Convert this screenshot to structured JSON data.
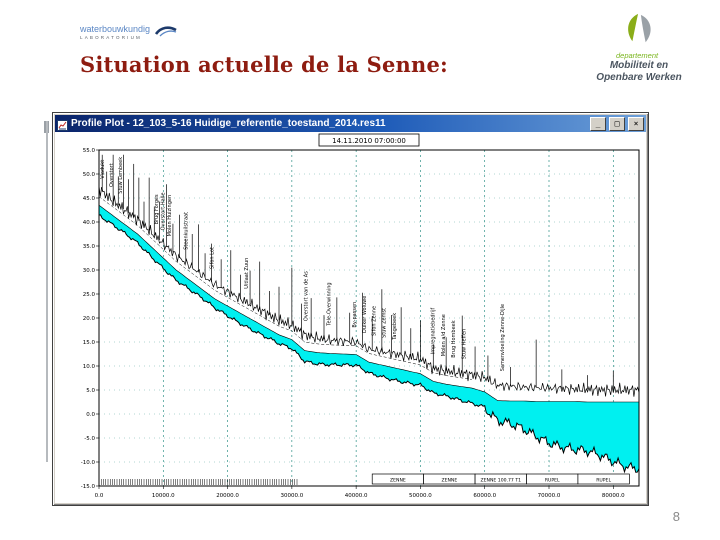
{
  "slide": {
    "title": "Situation actuelle de la Senne:",
    "page_number": "8"
  },
  "logos": {
    "top_left": {
      "line1": "waterbouwkundig",
      "line2": "LABORATORIUM"
    },
    "top_right": {
      "line1": "departement",
      "line2": "Mobiliteit en",
      "line3": "Openbare Werken"
    }
  },
  "window": {
    "title": "Profile Plot - 12_103_5-16 Huidige_referentie_toestand_2014.res11",
    "buttons": {
      "minimize": "_",
      "maximize": "□",
      "close": "×"
    }
  },
  "chart_data": {
    "type": "area",
    "title": "14.11.2010 07:00:00",
    "xlabel": "",
    "ylabel": "",
    "xlim": [
      0,
      84000
    ],
    "ylim": [
      -15,
      55
    ],
    "x_ticks": [
      0,
      10000,
      20000,
      30000,
      40000,
      50000,
      60000,
      70000,
      80000
    ],
    "y_ticks": [
      55,
      50,
      45,
      40,
      35,
      30,
      25,
      20,
      15,
      10,
      5,
      0,
      -5,
      -10,
      -15
    ],
    "grid": "dashed",
    "legend": "none",
    "colors": {
      "water": "#00f0f0",
      "grid": "#0e8074",
      "axis": "#000000"
    },
    "x": [
      0,
      2000,
      4000,
      6000,
      8000,
      10000,
      12000,
      14000,
      16000,
      18000,
      20000,
      22000,
      24000,
      26000,
      28000,
      30000,
      32000,
      34000,
      36000,
      38000,
      40000,
      42000,
      44000,
      46000,
      48000,
      50000,
      52000,
      54000,
      56000,
      58000,
      60000,
      62000,
      64000,
      66000,
      68000,
      70000,
      72000,
      74000,
      76000,
      78000,
      80000,
      82000,
      84000
    ],
    "series": [
      {
        "name": "water_surface",
        "y": [
          43.5,
          41.5,
          39.5,
          37.5,
          35,
          32.5,
          30,
          28,
          26,
          24,
          22.5,
          21,
          19.5,
          18,
          16.5,
          15.5,
          13.2,
          12.8,
          12.6,
          12.5,
          12.4,
          10.8,
          10.2,
          9.6,
          9,
          8.4,
          6.8,
          6.2,
          5.8,
          5.4,
          4.6,
          2.8,
          2.7,
          2.7,
          2.6,
          2.6,
          2.6,
          2.6,
          2.5,
          2.5,
          2.5,
          2.5,
          2.5
        ]
      },
      {
        "name": "river_bed",
        "y": [
          41.5,
          39.5,
          37.5,
          35.5,
          33,
          30.5,
          28,
          26,
          24,
          22,
          20.5,
          19,
          17.5,
          16,
          14.5,
          13.5,
          11,
          10.6,
          10.4,
          10.2,
          10,
          8.4,
          7.8,
          7.2,
          6.6,
          6,
          4.2,
          3.6,
          3,
          2.4,
          1.6,
          -1.5,
          -2.5,
          -3.5,
          -4.5,
          -5.5,
          -6.5,
          -7.5,
          -8.2,
          -9,
          -9.8,
          -10.5,
          -11
        ]
      },
      {
        "name": "embankment_crest",
        "y": [
          47,
          44.5,
          42.5,
          40.5,
          38,
          35.5,
          33,
          31,
          29,
          27,
          25.5,
          24,
          22.5,
          21,
          19.5,
          18.5,
          16.5,
          15.8,
          15.4,
          15.2,
          15,
          13.5,
          13,
          12.5,
          12,
          11.5,
          9.5,
          9,
          8.6,
          8.2,
          7.6,
          6,
          5.8,
          5.6,
          5.5,
          5.4,
          5.3,
          5.2,
          5.1,
          5,
          5,
          5,
          5
        ]
      }
    ],
    "structures": [
      {
        "x": 500,
        "h": 8
      },
      {
        "x": 1200,
        "h": 5
      },
      {
        "x": 2200,
        "h": 10
      },
      {
        "x": 3000,
        "h": 6
      },
      {
        "x": 3800,
        "h": 12
      },
      {
        "x": 4600,
        "h": 7
      },
      {
        "x": 5400,
        "h": 11
      },
      {
        "x": 6200,
        "h": 9
      },
      {
        "x": 7000,
        "h": 5
      },
      {
        "x": 7800,
        "h": 11
      },
      {
        "x": 8600,
        "h": 6
      },
      {
        "x": 9400,
        "h": 8
      },
      {
        "x": 10500,
        "h": 13
      },
      {
        "x": 11500,
        "h": 6
      },
      {
        "x": 12500,
        "h": 9
      },
      {
        "x": 13500,
        "h": 5
      },
      {
        "x": 14500,
        "h": 7
      },
      {
        "x": 15500,
        "h": 10
      },
      {
        "x": 16500,
        "h": 5
      },
      {
        "x": 17500,
        "h": 8
      },
      {
        "x": 19000,
        "h": 6
      },
      {
        "x": 20500,
        "h": 9
      },
      {
        "x": 22000,
        "h": 5
      },
      {
        "x": 23500,
        "h": 7
      },
      {
        "x": 25000,
        "h": 10
      },
      {
        "x": 26500,
        "h": 5
      },
      {
        "x": 28000,
        "h": 7
      },
      {
        "x": 30000,
        "h": 12
      },
      {
        "x": 31500,
        "h": 6
      },
      {
        "x": 33000,
        "h": 8
      },
      {
        "x": 35000,
        "h": 5
      },
      {
        "x": 37000,
        "h": 9
      },
      {
        "x": 39000,
        "h": 6
      },
      {
        "x": 41000,
        "h": 11
      },
      {
        "x": 42500,
        "h": 7
      },
      {
        "x": 44000,
        "h": 13
      },
      {
        "x": 45500,
        "h": 8
      },
      {
        "x": 47000,
        "h": 10
      },
      {
        "x": 48500,
        "h": 6
      },
      {
        "x": 50000,
        "h": 8
      },
      {
        "x": 52000,
        "h": 5
      },
      {
        "x": 54000,
        "h": 7
      },
      {
        "x": 56500,
        "h": 12
      },
      {
        "x": 58500,
        "h": 6
      },
      {
        "x": 60500,
        "h": 5
      },
      {
        "x": 64000,
        "h": 4
      },
      {
        "x": 68000,
        "h": 10
      },
      {
        "x": 72000,
        "h": 4
      },
      {
        "x": 76000,
        "h": 3
      },
      {
        "x": 80000,
        "h": 4
      }
    ],
    "stations": [
      {
        "x": 800,
        "label": "Viadukt"
      },
      {
        "x": 2200,
        "label": "Overstort"
      },
      {
        "x": 3600,
        "label": "Stuw Lembeek"
      },
      {
        "x": 9200,
        "label": "Brug Forges"
      },
      {
        "x": 10200,
        "label": "Overstort Halle"
      },
      {
        "x": 11200,
        "label": "Molen Huizingen"
      },
      {
        "x": 13800,
        "label": "Steenkuilstraat"
      },
      {
        "x": 17800,
        "label": "Sifon Lot"
      },
      {
        "x": 23200,
        "label": "Uitlaat Zuun"
      },
      {
        "x": 32400,
        "label": "Overstort van de As"
      },
      {
        "x": 36000,
        "label": "Tele-Overwinning"
      },
      {
        "x": 40000,
        "label": "By-passen"
      },
      {
        "x": 41500,
        "label": "Duiker Woluwe"
      },
      {
        "x": 43000,
        "label": "Sifon Zenne"
      },
      {
        "x": 44600,
        "label": "Stuw Zemst"
      },
      {
        "x": 46200,
        "label": "Tangebeek"
      },
      {
        "x": 52200,
        "label": "Impregnatiebedrijf"
      },
      {
        "x": 53800,
        "label": "Molen a/d Zenne"
      },
      {
        "x": 55400,
        "label": "Brug Hombeek"
      },
      {
        "x": 57000,
        "label": "Stuw Heffen"
      },
      {
        "x": 63000,
        "label": "Samenvloeiing Zenne-Dijle"
      }
    ],
    "segments": [
      {
        "label": "ZENNE",
        "from": 42500,
        "to": 50500
      },
      {
        "label": "ZENNE",
        "from": 50500,
        "to": 58500
      },
      {
        "label": "ZENNE 100.77 T1",
        "from": 58500,
        "to": 66500
      },
      {
        "label": "RUPEL",
        "from": 66500,
        "to": 74500
      },
      {
        "label": "RUPEL",
        "from": 74500,
        "to": 82500
      }
    ]
  }
}
